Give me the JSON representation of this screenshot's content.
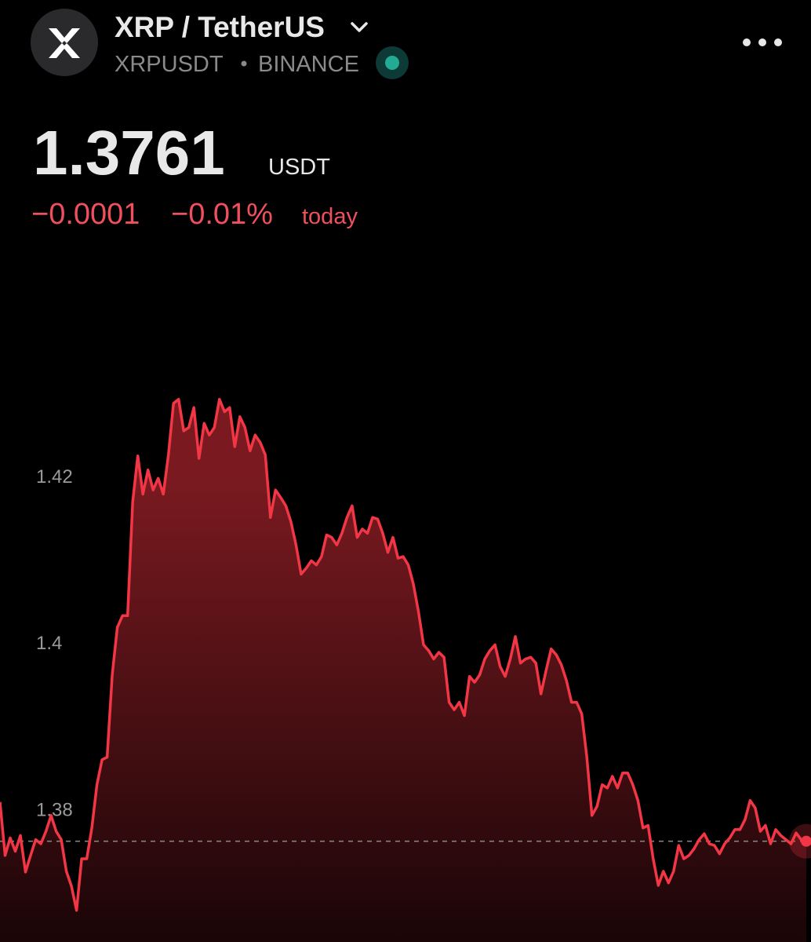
{
  "header": {
    "title": "XRP / TetherUS",
    "symbol": "XRPUSDT",
    "exchange": "BINANCE"
  },
  "quote": {
    "price": "1.3761",
    "currency": "USDT",
    "change": "−0.0001",
    "change_pct": "−0.01%",
    "period": "today"
  },
  "chart_data": {
    "type": "line",
    "color": "#f23645",
    "values": [
      1.3808,
      1.3744,
      1.3765,
      1.3749,
      1.3768,
      1.3724,
      1.3744,
      1.3763,
      1.3758,
      1.3773,
      1.3792,
      1.3773,
      1.3763,
      1.3725,
      1.3707,
      1.3678,
      1.374,
      1.374,
      1.3777,
      1.3829,
      1.3859,
      1.3862,
      1.3961,
      1.4018,
      1.4032,
      1.4032,
      1.4169,
      1.4224,
      1.4178,
      1.4207,
      1.4183,
      1.4197,
      1.4178,
      1.4225,
      1.4287,
      1.4292,
      1.4254,
      1.4258,
      1.4282,
      1.4221,
      1.4263,
      1.4249,
      1.4258,
      1.4292,
      1.4277,
      1.4282,
      1.4235,
      1.4271,
      1.4258,
      1.423,
      1.4249,
      1.424,
      1.4225,
      1.415,
      1.4183,
      1.4174,
      1.4164,
      1.4145,
      1.4117,
      1.4082,
      1.4089,
      1.4098,
      1.4093,
      1.4103,
      1.4129,
      1.4126,
      1.4117,
      1.4131,
      1.415,
      1.4164,
      1.4126,
      1.4136,
      1.4131,
      1.415,
      1.4148,
      1.4131,
      1.4108,
      1.4126,
      1.4101,
      1.4103,
      1.4093,
      1.407,
      1.4037,
      1.3997,
      1.399,
      1.398,
      1.3988,
      1.3982,
      1.3928,
      1.3919,
      1.3928,
      1.3912,
      1.3959,
      1.3952,
      1.3961,
      1.398,
      1.399,
      1.3997,
      1.3971,
      1.3959,
      1.398,
      1.4007,
      1.3975,
      1.398,
      1.3982,
      1.3975,
      1.3938,
      1.3966,
      1.3992,
      1.3985,
      1.3973,
      1.3954,
      1.3928,
      1.3928,
      1.3914,
      1.3862,
      1.3792,
      1.3803,
      1.3829,
      1.3825,
      1.3839,
      1.3825,
      1.3843,
      1.3843,
      1.3829,
      1.381,
      1.3777,
      1.378,
      1.374,
      1.3708,
      1.3725,
      1.3711,
      1.3725,
      1.3756,
      1.374,
      1.3744,
      1.3752,
      1.3763,
      1.377,
      1.3758,
      1.3756,
      1.3746,
      1.3758,
      1.3765,
      1.3775,
      1.3775,
      1.3787,
      1.381,
      1.3801,
      1.3773,
      1.378,
      1.3758,
      1.3775,
      1.3768,
      1.3763,
      1.3758,
      1.3771,
      1.3763,
      1.3761
    ],
    "ylim": [
      1.364,
      1.45
    ],
    "yticks": [
      1.38,
      1.4,
      1.42
    ]
  }
}
